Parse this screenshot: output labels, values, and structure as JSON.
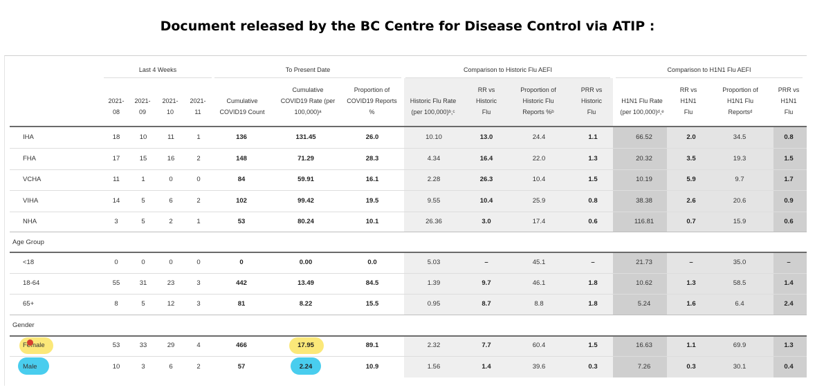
{
  "title": "Document released by the BC Centre for Disease Control via ATIP :",
  "groups": [
    "Last 4 Weeks",
    "To Present Date",
    "Comparison to Historic Flu AEFI",
    "Comparison to H1N1 Flu AEFI"
  ],
  "columns": [
    "2021-\n08",
    "2021-\n09",
    "2021-\n10",
    "2021-\n11",
    "Cumulative\nCOVID19 Count",
    "Cumulative\nCOVID19 Rate (per\n100,000)ᵃ",
    "Proportion of\nCOVID19 Reports\n%",
    "Historic Flu Rate\n(per 100,000)ᵇ,ᶜ",
    "RR vs\nHistoric\nFlu",
    "Proportion of\nHistoric Flu\nReports %ᵇ",
    "PRR vs\nHistoric\nFlu",
    "H1N1 Flu Rate\n(per 100,000)ᵈ,ᵉ",
    "RR vs\nH1N1\nFlu",
    "Proportion of\nH1N1 Flu\nReportsᵈ",
    "PRR vs\nH1N1\nFlu"
  ],
  "sections": {
    "age": "Age Group",
    "gender": "Gender"
  },
  "rows_region": [
    {
      "label": "IHA",
      "values": [
        "18",
        "10",
        "11",
        "1",
        "136",
        "131.45",
        "26.0",
        "10.10",
        "13.0",
        "24.4",
        "1.1",
        "66.52",
        "2.0",
        "34.5",
        "0.8"
      ]
    },
    {
      "label": "FHA",
      "values": [
        "17",
        "15",
        "16",
        "2",
        "148",
        "71.29",
        "28.3",
        "4.34",
        "16.4",
        "22.0",
        "1.3",
        "20.32",
        "3.5",
        "19.3",
        "1.5"
      ]
    },
    {
      "label": "VCHA",
      "values": [
        "11",
        "1",
        "0",
        "0",
        "84",
        "59.91",
        "16.1",
        "2.28",
        "26.3",
        "10.4",
        "1.5",
        "10.19",
        "5.9",
        "9.7",
        "1.7"
      ]
    },
    {
      "label": "VIHA",
      "values": [
        "14",
        "5",
        "6",
        "2",
        "102",
        "99.42",
        "19.5",
        "9.55",
        "10.4",
        "25.9",
        "0.8",
        "38.38",
        "2.6",
        "20.6",
        "0.9"
      ]
    },
    {
      "label": "NHA",
      "values": [
        "3",
        "5",
        "2",
        "1",
        "53",
        "80.24",
        "10.1",
        "26.36",
        "3.0",
        "17.4",
        "0.6",
        "116.81",
        "0.7",
        "15.9",
        "0.6"
      ]
    }
  ],
  "rows_age": [
    {
      "label": "<18",
      "values": [
        "0",
        "0",
        "0",
        "0",
        "0",
        "0.00",
        "0.0",
        "5.03",
        "–",
        "45.1",
        "–",
        "21.73",
        "–",
        "35.0",
        "–"
      ]
    },
    {
      "label": "18-64",
      "values": [
        "55",
        "31",
        "23",
        "3",
        "442",
        "13.49",
        "84.5",
        "1.39",
        "9.7",
        "46.1",
        "1.8",
        "10.62",
        "1.3",
        "58.5",
        "1.4"
      ]
    },
    {
      "label": "65+",
      "values": [
        "8",
        "5",
        "12",
        "3",
        "81",
        "8.22",
        "15.5",
        "0.95",
        "8.7",
        "8.8",
        "1.8",
        "5.24",
        "1.6",
        "6.4",
        "2.4"
      ]
    }
  ],
  "rows_gender": [
    {
      "label": "Female",
      "values": [
        "53",
        "33",
        "29",
        "4",
        "466",
        "17.95",
        "89.1",
        "2.32",
        "7.7",
        "60.4",
        "1.5",
        "16.63",
        "1.1",
        "69.9",
        "1.3"
      ]
    },
    {
      "label": "Male",
      "values": [
        "10",
        "3",
        "6",
        "2",
        "57",
        "2.24",
        "10.9",
        "1.56",
        "1.4",
        "39.6",
        "0.3",
        "7.26",
        "0.3",
        "30.1",
        "0.4"
      ]
    }
  ]
}
